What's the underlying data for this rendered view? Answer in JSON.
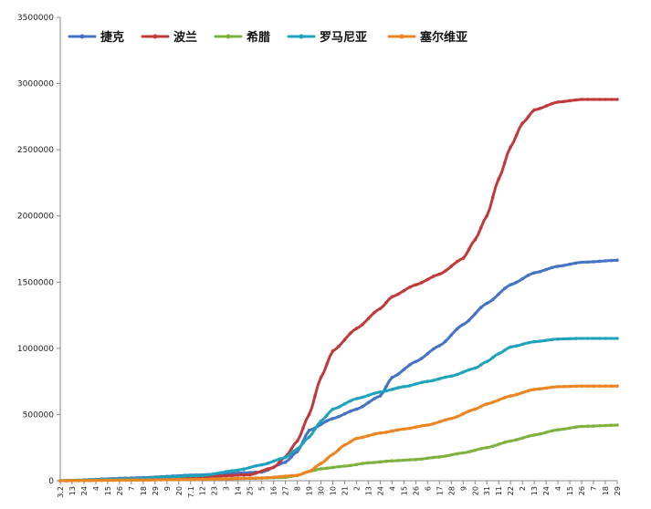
{
  "chart_data": {
    "type": "line",
    "title": "",
    "xlabel": "",
    "ylabel": "",
    "ylim": [
      0,
      3500000
    ],
    "y_ticks": [
      0,
      500000,
      1000000,
      1500000,
      2000000,
      2500000,
      3000000,
      3500000
    ],
    "grid": false,
    "legend_position": "top",
    "categories": [
      "3.2",
      "13",
      "24",
      "4",
      "15",
      "26",
      "7",
      "18",
      "29",
      "9",
      "20",
      "7.1",
      "12",
      "23",
      "3",
      "14",
      "25",
      "5",
      "16",
      "27",
      "8",
      "19",
      "30",
      "10",
      "21",
      "2",
      "13",
      "24",
      "4",
      "15",
      "26",
      "6",
      "17",
      "28",
      "9",
      "20",
      "31",
      "11",
      "22",
      "2",
      "13",
      "24",
      "4",
      "15",
      "26",
      "7",
      "18",
      "29"
    ],
    "x_index_range": [
      0,
      47
    ],
    "series": [
      {
        "name": "捷克",
        "color": "#4472c4",
        "points": [
          [
            0,
            0
          ],
          [
            6,
            20000
          ],
          [
            12,
            45000
          ],
          [
            17,
            65000
          ],
          [
            19,
            140000
          ],
          [
            20,
            220000
          ],
          [
            21,
            380000
          ],
          [
            23,
            470000
          ],
          [
            25,
            540000
          ],
          [
            27,
            640000
          ],
          [
            28,
            780000
          ],
          [
            30,
            900000
          ],
          [
            32,
            1020000
          ],
          [
            34,
            1180000
          ],
          [
            36,
            1340000
          ],
          [
            38,
            1480000
          ],
          [
            40,
            1570000
          ],
          [
            42,
            1620000
          ],
          [
            44,
            1650000
          ],
          [
            47,
            1665000
          ]
        ]
      },
      {
        "name": "波兰",
        "color": "#c0393b",
        "points": [
          [
            0,
            0
          ],
          [
            6,
            15000
          ],
          [
            12,
            30000
          ],
          [
            16,
            45000
          ],
          [
            18,
            100000
          ],
          [
            19,
            180000
          ],
          [
            20,
            300000
          ],
          [
            21,
            500000
          ],
          [
            22,
            780000
          ],
          [
            23,
            980000
          ],
          [
            25,
            1150000
          ],
          [
            27,
            1300000
          ],
          [
            28,
            1390000
          ],
          [
            30,
            1480000
          ],
          [
            32,
            1560000
          ],
          [
            34,
            1680000
          ],
          [
            35,
            1820000
          ],
          [
            36,
            2000000
          ],
          [
            37,
            2280000
          ],
          [
            38,
            2520000
          ],
          [
            39,
            2700000
          ],
          [
            40,
            2800000
          ],
          [
            42,
            2860000
          ],
          [
            44,
            2880000
          ],
          [
            47,
            2880000
          ]
        ]
      },
      {
        "name": "希腊",
        "color": "#7fb13e",
        "points": [
          [
            0,
            0
          ],
          [
            6,
            5000
          ],
          [
            12,
            10000
          ],
          [
            17,
            20000
          ],
          [
            19,
            25000
          ],
          [
            20,
            40000
          ],
          [
            21,
            70000
          ],
          [
            22,
            90000
          ],
          [
            24,
            110000
          ],
          [
            26,
            135000
          ],
          [
            28,
            150000
          ],
          [
            30,
            160000
          ],
          [
            32,
            180000
          ],
          [
            34,
            210000
          ],
          [
            36,
            250000
          ],
          [
            38,
            300000
          ],
          [
            40,
            345000
          ],
          [
            42,
            385000
          ],
          [
            44,
            410000
          ],
          [
            47,
            420000
          ]
        ]
      },
      {
        "name": "罗马尼亚",
        "color": "#1fa3bb",
        "points": [
          [
            0,
            0
          ],
          [
            6,
            15000
          ],
          [
            12,
            40000
          ],
          [
            15,
            80000
          ],
          [
            17,
            120000
          ],
          [
            19,
            175000
          ],
          [
            20,
            240000
          ],
          [
            21,
            330000
          ],
          [
            22,
            450000
          ],
          [
            23,
            540000
          ],
          [
            25,
            620000
          ],
          [
            27,
            670000
          ],
          [
            29,
            710000
          ],
          [
            31,
            750000
          ],
          [
            33,
            790000
          ],
          [
            35,
            850000
          ],
          [
            36,
            900000
          ],
          [
            37,
            960000
          ],
          [
            38,
            1010000
          ],
          [
            40,
            1050000
          ],
          [
            42,
            1070000
          ],
          [
            44,
            1075000
          ],
          [
            47,
            1075000
          ]
        ]
      },
      {
        "name": "塞尔维亚",
        "color": "#ec8521",
        "points": [
          [
            0,
            0
          ],
          [
            6,
            5000
          ],
          [
            12,
            10000
          ],
          [
            17,
            20000
          ],
          [
            20,
            40000
          ],
          [
            21,
            70000
          ],
          [
            22,
            130000
          ],
          [
            23,
            200000
          ],
          [
            24,
            270000
          ],
          [
            25,
            320000
          ],
          [
            27,
            360000
          ],
          [
            29,
            390000
          ],
          [
            31,
            420000
          ],
          [
            33,
            470000
          ],
          [
            35,
            540000
          ],
          [
            36,
            580000
          ],
          [
            38,
            640000
          ],
          [
            40,
            690000
          ],
          [
            42,
            710000
          ],
          [
            44,
            715000
          ],
          [
            47,
            715000
          ]
        ]
      }
    ]
  }
}
